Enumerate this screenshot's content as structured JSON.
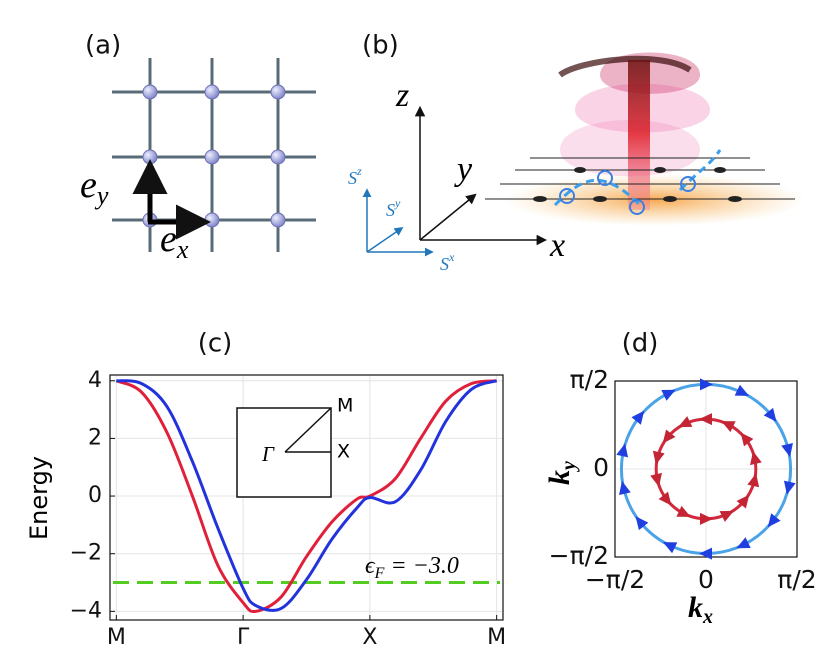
{
  "panels": {
    "a": {
      "label": "(a)",
      "ex": {
        "main": "e",
        "sub": "x"
      },
      "ey": {
        "main": "e",
        "sub": "y"
      }
    },
    "b": {
      "label": "(b)",
      "axes": {
        "x": "x",
        "y": "y",
        "z": "z"
      },
      "spin": {
        "x": {
          "main": "S",
          "sup": "x"
        },
        "y": {
          "main": "S",
          "sup": "y"
        },
        "z": {
          "main": "S",
          "sup": "z"
        }
      }
    }
  },
  "chart_data": [
    {
      "type": "line",
      "title": "(c)",
      "y_label": "Energy",
      "grid": true,
      "xlim": [
        -0.05,
        3.05
      ],
      "ylim": [
        -4.3,
        4.2
      ],
      "xticks": [
        {
          "value": 0,
          "label": "M"
        },
        {
          "value": 1,
          "label": "Γ"
        },
        {
          "value": 2,
          "label": "X"
        },
        {
          "value": 3,
          "label": "M"
        }
      ],
      "yticks": [
        {
          "value": -4,
          "label": "−4"
        },
        {
          "value": -2,
          "label": "−2"
        },
        0,
        2,
        4
      ],
      "x": [
        0,
        0.2,
        0.4,
        0.6,
        0.8,
        1.0,
        1.1,
        1.3,
        1.5,
        1.7,
        1.9,
        2.0,
        2.2,
        2.4,
        2.6,
        2.8,
        3.0
      ],
      "series": [
        {
          "color": "#e0203a",
          "values": [
            4,
            3.6,
            2.2,
            0.0,
            -2.4,
            -3.7,
            -4.0,
            -3.5,
            -2.1,
            -0.9,
            -0.1,
            0.0,
            0.6,
            2.0,
            3.3,
            3.9,
            4.0
          ]
        },
        {
          "color": "#2233dd",
          "values": [
            4,
            3.9,
            3.1,
            1.2,
            -1.1,
            -3.2,
            -3.8,
            -3.9,
            -2.9,
            -1.5,
            -0.4,
            -0.05,
            -0.2,
            0.9,
            2.6,
            3.7,
            4.0
          ]
        }
      ],
      "hline": {
        "value": -3,
        "color": "#55cc22",
        "label": {
          "main": "ϵ",
          "sub": "F",
          "rest": " = −3.0"
        }
      },
      "inset": {
        "gamma": "Γ",
        "x": "X",
        "m": "M"
      }
    },
    {
      "type": "circle",
      "title": "(d)",
      "x_label": {
        "main": "k",
        "sub": "x"
      },
      "y_label": {
        "main": "k",
        "sub": "y"
      },
      "xlim": [
        -1.5708,
        1.5708
      ],
      "ylim": [
        -1.5708,
        1.5708
      ],
      "xticks": [
        {
          "value": -1.5708,
          "label": "−π/2"
        },
        0,
        {
          "value": 1.5708,
          "label": "π/2"
        }
      ],
      "yticks": [
        {
          "value": -1.5708,
          "label": "−π/2"
        },
        0,
        {
          "value": 1.5708,
          "label": "π/2"
        }
      ],
      "series": [
        {
          "color": "#4aa3e6",
          "arrow_color": "#1f3fe0",
          "radius": 1.46,
          "direction": "clockwise"
        },
        {
          "color": "#d22a3c",
          "arrow_color": "#c42535",
          "radius": 0.86,
          "direction": "counterclockwise"
        }
      ]
    }
  ]
}
